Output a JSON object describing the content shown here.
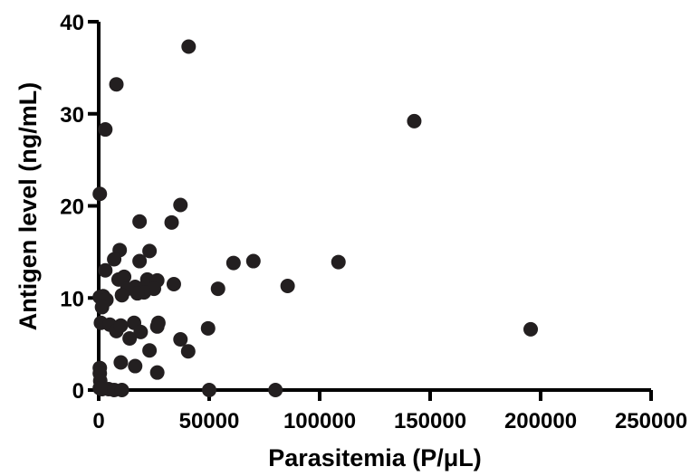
{
  "chart_data": {
    "type": "scatter",
    "title": "",
    "xlabel": "Parasitemia (P/μL)",
    "ylabel": "Antigen level (ng/mL)",
    "xlim": [
      0,
      250000
    ],
    "ylim": [
      0,
      40
    ],
    "xticks": [
      0,
      50000,
      100000,
      150000,
      200000,
      250000
    ],
    "xtick_labels": [
      "0",
      "50000",
      "100000",
      "150000",
      "200000",
      "250000"
    ],
    "yticks": [
      0,
      10,
      20,
      30,
      40
    ],
    "ytick_labels": [
      "0",
      "10",
      "20",
      "30",
      "40"
    ],
    "grid": false,
    "legend": "none",
    "marker_color": "#231f20",
    "series": [
      {
        "points": [
          [
            40700,
            37.3
          ],
          [
            8000,
            33.2
          ],
          [
            142800,
            29.2
          ],
          [
            3000,
            28.3
          ],
          [
            500,
            21.3
          ],
          [
            37000,
            20.1
          ],
          [
            18500,
            18.3
          ],
          [
            33000,
            18.2
          ],
          [
            9500,
            15.2
          ],
          [
            23000,
            15.1
          ],
          [
            7000,
            14.2
          ],
          [
            18500,
            14.0
          ],
          [
            61000,
            13.8
          ],
          [
            70000,
            14.0
          ],
          [
            108500,
            13.9
          ],
          [
            3000,
            13.0
          ],
          [
            9000,
            12.0
          ],
          [
            11500,
            12.3
          ],
          [
            22000,
            12.0
          ],
          [
            26500,
            11.9
          ],
          [
            34000,
            11.5
          ],
          [
            85500,
            11.3
          ],
          [
            16500,
            11.2
          ],
          [
            19000,
            11.0
          ],
          [
            13000,
            11.0
          ],
          [
            25000,
            11.0
          ],
          [
            54000,
            11.0
          ],
          [
            20500,
            10.6
          ],
          [
            10500,
            10.3
          ],
          [
            2000,
            10.2
          ],
          [
            500,
            10.1
          ],
          [
            3500,
            9.8
          ],
          [
            1500,
            9.0
          ],
          [
            17500,
            10.5
          ],
          [
            1000,
            7.3
          ],
          [
            5000,
            7.1
          ],
          [
            8000,
            6.4
          ],
          [
            10000,
            7.0
          ],
          [
            16000,
            7.3
          ],
          [
            19000,
            6.3
          ],
          [
            27000,
            7.3
          ],
          [
            26500,
            6.9
          ],
          [
            49500,
            6.7
          ],
          [
            195500,
            6.6
          ],
          [
            14000,
            5.6
          ],
          [
            37000,
            5.5
          ],
          [
            23000,
            4.3
          ],
          [
            40500,
            4.2
          ],
          [
            10000,
            3.0
          ],
          [
            16500,
            2.6
          ],
          [
            26500,
            1.9
          ],
          [
            500,
            2.4
          ],
          [
            500,
            1.8
          ],
          [
            700,
            1.0
          ],
          [
            500,
            0.2
          ],
          [
            1500,
            0.1
          ],
          [
            4500,
            0.1
          ],
          [
            7000,
            0.0
          ],
          [
            10500,
            0.0
          ],
          [
            50000,
            0.0
          ],
          [
            80000,
            0.0
          ]
        ]
      }
    ]
  }
}
